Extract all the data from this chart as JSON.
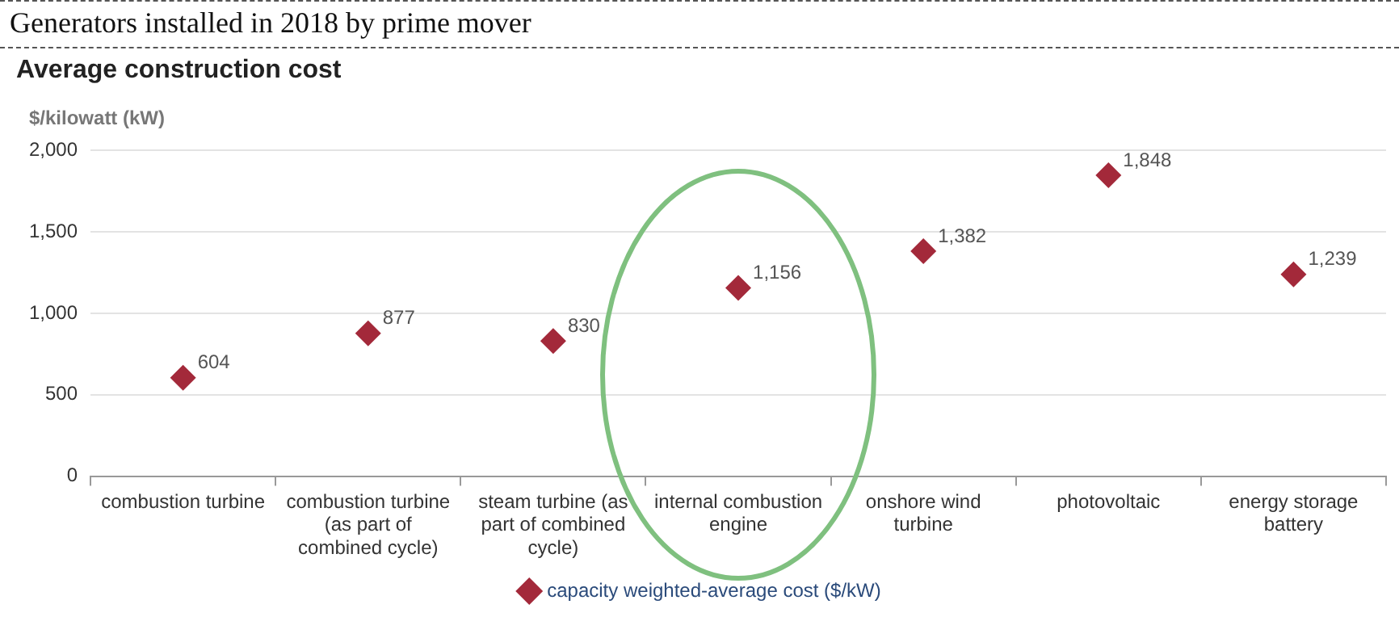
{
  "chart_data": {
    "type": "scatter",
    "title": "Generators installed in 2018 by prime mover",
    "subtitle": "Average construction cost",
    "ylabel": "$/kilowatt (kW)",
    "categories": [
      "combustion turbine",
      "combustion turbine (as part of combined cycle)",
      "steam turbine (as part of combined cycle)",
      "internal combustion engine",
      "onshore wind turbine",
      "photovoltaic",
      "energy storage battery"
    ],
    "series": [
      {
        "name": "capacity weighted-average cost ($/kW)",
        "color": "#a3293a",
        "values": [
          604,
          877,
          830,
          1156,
          1382,
          1848,
          1239
        ],
        "value_labels": [
          "604",
          "877",
          "830",
          "1,156",
          "1,382",
          "1,848",
          "1,239"
        ]
      }
    ],
    "ylim": [
      0,
      2000
    ],
    "yticks": [
      {
        "value": 0,
        "label": "0"
      },
      {
        "value": 500,
        "label": "500"
      },
      {
        "value": 1000,
        "label": "1,000"
      },
      {
        "value": 1500,
        "label": "1,500"
      },
      {
        "value": 2000,
        "label": "2,000"
      }
    ],
    "grid": "y",
    "legend": "bottom",
    "marker": "diamond"
  }
}
